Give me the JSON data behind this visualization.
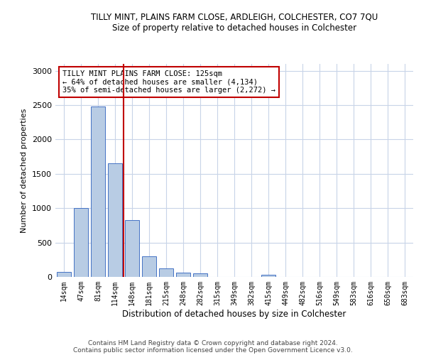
{
  "title": "TILLY MINT, PLAINS FARM CLOSE, ARDLEIGH, COLCHESTER, CO7 7QU",
  "subtitle": "Size of property relative to detached houses in Colchester",
  "xlabel": "Distribution of detached houses by size in Colchester",
  "ylabel": "Number of detached properties",
  "categories": [
    "14sqm",
    "47sqm",
    "81sqm",
    "114sqm",
    "148sqm",
    "181sqm",
    "215sqm",
    "248sqm",
    "282sqm",
    "315sqm",
    "349sqm",
    "382sqm",
    "415sqm",
    "449sqm",
    "482sqm",
    "516sqm",
    "549sqm",
    "583sqm",
    "616sqm",
    "650sqm",
    "683sqm"
  ],
  "values": [
    75,
    1000,
    2475,
    1650,
    825,
    300,
    125,
    60,
    55,
    0,
    0,
    0,
    30,
    0,
    0,
    0,
    0,
    0,
    0,
    0,
    0
  ],
  "bar_color": "#b8cce4",
  "bar_edge_color": "#4472c4",
  "vline_x": 3.5,
  "vline_color": "#c00000",
  "annotation_text": "TILLY MINT PLAINS FARM CLOSE: 125sqm\n← 64% of detached houses are smaller (4,134)\n35% of semi-detached houses are larger (2,272) →",
  "annotation_box_color": "#ffffff",
  "annotation_box_edge_color": "#c00000",
  "ylim": [
    0,
    3100
  ],
  "yticks": [
    0,
    500,
    1000,
    1500,
    2000,
    2500,
    3000
  ],
  "bg_color": "#ffffff",
  "grid_color": "#c8d4e8",
  "footer1": "Contains HM Land Registry data © Crown copyright and database right 2024.",
  "footer2": "Contains public sector information licensed under the Open Government Licence v3.0."
}
